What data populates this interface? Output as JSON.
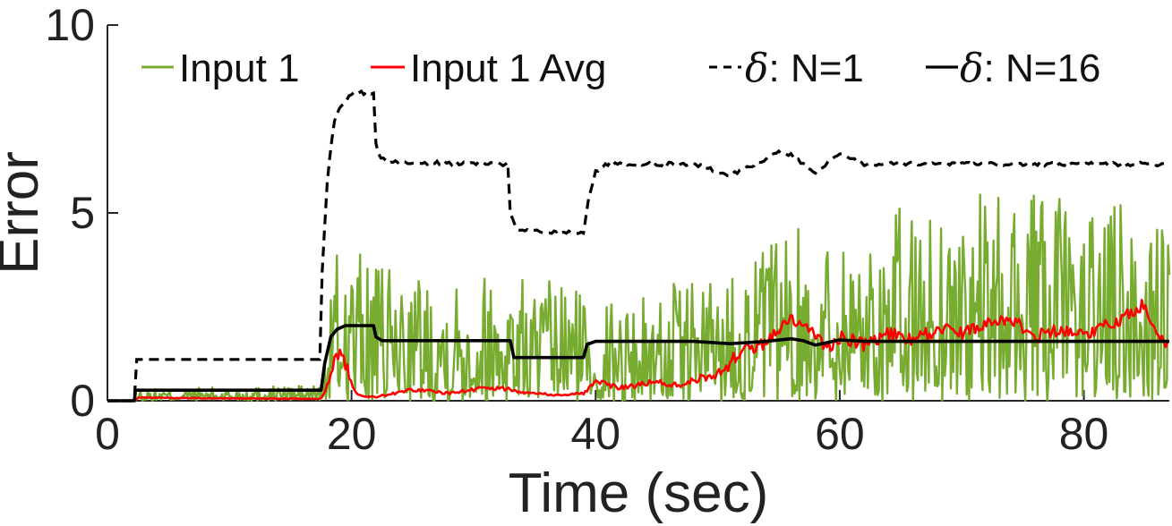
{
  "chart_data": {
    "type": "line",
    "xlabel": "Time (sec)",
    "ylabel": "Error",
    "xlim": [
      0,
      87
    ],
    "ylim": [
      0,
      10
    ],
    "xticks": [
      "0",
      "20",
      "40",
      "60",
      "80"
    ],
    "yticks": [
      "0",
      "5",
      "10"
    ],
    "grid": false,
    "legend": {
      "placement": "top",
      "entries": [
        {
          "prefix": "",
          "label": "Input 1"
        },
        {
          "prefix": "",
          "label": "Input 1 Avg"
        },
        {
          "prefix": "δ",
          "label": ": N=1"
        },
        {
          "prefix": "δ",
          "label": ": N=16"
        }
      ]
    },
    "series": [
      {
        "name": "Input 1",
        "color": "#77AC30",
        "style": "solid",
        "sample_interval_sec": 0.1,
        "noise_envelope": {
          "x": [
            0,
            2.2,
            2.3,
            17.5,
            18.0,
            18.4,
            20.0,
            22.0,
            33.0,
            35.0,
            39.0,
            40.0,
            45.0,
            50.0,
            55.0,
            60.0,
            70.0,
            80.0,
            87.0
          ],
          "peak": [
            0,
            0,
            0.3,
            0.45,
            1.5,
            3.8,
            4.3,
            3.5,
            3.5,
            3.2,
            3.2,
            2.6,
            3.0,
            3.5,
            4.5,
            4.8,
            5.5,
            5.5,
            5.0
          ]
        }
      },
      {
        "name": "Input 1 Avg",
        "color": "#FF0000",
        "style": "solid",
        "x": [
          0,
          2.2,
          2.5,
          17.5,
          18.0,
          18.5,
          19.2,
          20.0,
          20.5,
          22.0,
          25.0,
          28.0,
          31.0,
          33.0,
          35.0,
          37.0,
          39.0,
          40.0,
          42.0,
          45.0,
          47.0,
          48.0,
          50.0,
          51.0,
          52.0,
          53.0,
          54.0,
          55.0,
          56.0,
          57.0,
          58.0,
          59.0,
          60.0,
          62.0,
          64.0,
          66.0,
          68.0,
          70.0,
          72.0,
          74.0,
          76.0,
          78.0,
          80.0,
          82.0,
          84.0,
          85.0,
          86.0,
          87.0
        ],
        "y": [
          0,
          0,
          0.08,
          0.05,
          0.4,
          1.0,
          1.3,
          0.5,
          0.15,
          0.1,
          0.3,
          0.2,
          0.35,
          0.3,
          0.2,
          0.15,
          0.2,
          0.5,
          0.35,
          0.5,
          0.4,
          0.55,
          0.7,
          1.0,
          1.4,
          1.3,
          1.6,
          1.9,
          2.2,
          2.0,
          1.7,
          1.4,
          1.7,
          1.5,
          1.8,
          1.6,
          1.9,
          1.8,
          2.1,
          2.2,
          1.7,
          1.9,
          1.8,
          2.0,
          2.4,
          2.6,
          1.7,
          1.5
        ]
      },
      {
        "name": "δ: N=1",
        "color": "#000000",
        "style": "dashed",
        "x": [
          0,
          2.2,
          2.2,
          17.5,
          17.6,
          18.0,
          18.5,
          19.0,
          19.5,
          20.0,
          21.0,
          21.8,
          22.0,
          22.3,
          23.0,
          32.8,
          33.0,
          33.5,
          34.5,
          39.0,
          39.5,
          40.0,
          41.0,
          48.0,
          51.0,
          53.0,
          55.0,
          56.0,
          57.0,
          58.0,
          59.0,
          60.0,
          62.0,
          87.0
        ],
        "y": [
          0,
          0,
          1.1,
          1.1,
          3.5,
          5.8,
          7.3,
          7.8,
          8.0,
          8.15,
          8.2,
          8.2,
          6.8,
          6.5,
          6.35,
          6.3,
          5.0,
          4.6,
          4.5,
          4.5,
          5.5,
          6.1,
          6.3,
          6.3,
          6.0,
          6.3,
          6.6,
          6.55,
          6.3,
          6.05,
          6.35,
          6.55,
          6.3,
          6.3
        ]
      },
      {
        "name": "δ: N=16",
        "color": "#000000",
        "style": "solid",
        "x": [
          0,
          2.2,
          2.3,
          17.5,
          17.8,
          18.3,
          18.8,
          19.5,
          20.0,
          21.8,
          22.0,
          22.5,
          33.0,
          33.3,
          39.0,
          39.3,
          40.0,
          48.0,
          51.0,
          54.0,
          56.0,
          57.0,
          58.0,
          59.0,
          60.0,
          62.0,
          87.0
        ],
        "y": [
          0,
          0,
          0.28,
          0.28,
          1.0,
          1.7,
          1.9,
          2.0,
          2.0,
          2.0,
          1.7,
          1.6,
          1.6,
          1.15,
          1.15,
          1.5,
          1.58,
          1.58,
          1.52,
          1.58,
          1.65,
          1.6,
          1.48,
          1.55,
          1.62,
          1.58,
          1.58
        ]
      }
    ]
  }
}
